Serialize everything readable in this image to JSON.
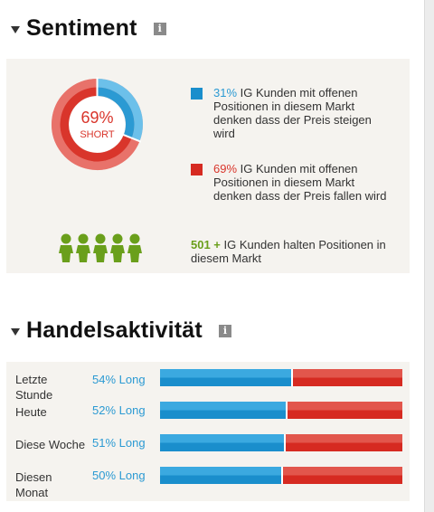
{
  "sentiment": {
    "title": "Sentiment",
    "info_icon": "i",
    "donut": {
      "percent_label": "69%",
      "direction_label": "SHORT",
      "long_fraction": 0.31,
      "short_fraction": 0.69
    },
    "long_legend": {
      "percent": "31%",
      "text": "IG Kunden mit offenen Positionen in diesem Markt denken dass der Preis steigen wird"
    },
    "short_legend": {
      "percent": "69%",
      "text": "IG Kunden mit offenen Positionen in diesem Markt denken dass der Preis fallen wird"
    },
    "holders": {
      "count": "501 +",
      "text": "IG Kunden halten Positionen in diesem Markt"
    }
  },
  "activity": {
    "title": "Handelsaktivität",
    "info_icon": "i",
    "rows": [
      {
        "label": "Letzte Stunde",
        "pct_label": "54% Long",
        "long": 54
      },
      {
        "label": "Heute",
        "pct_label": "52% Long",
        "long": 52
      },
      {
        "label": "Diese Woche",
        "pct_label": "51% Long",
        "long": 51
      },
      {
        "label": "Diesen Monat",
        "pct_label": "50% Long",
        "long": 50
      }
    ]
  },
  "colors": {
    "long": "#1a8ecc",
    "short": "#d62a21",
    "holders": "#6a9f1b",
    "people_icon": "#6a9f1b"
  },
  "icons": [
    "triangle-down-icon",
    "info-icon",
    "person-icon"
  ]
}
